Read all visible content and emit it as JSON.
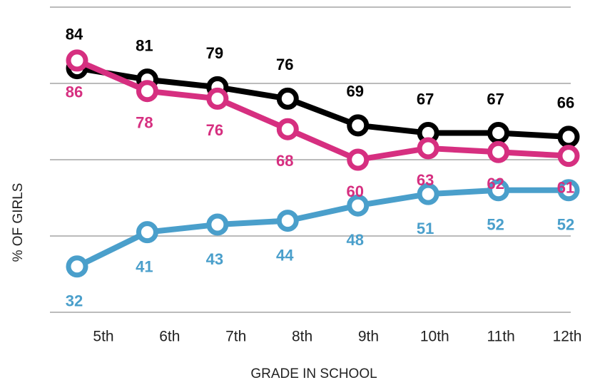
{
  "chart_data": {
    "type": "line",
    "x_label": "GRADE IN SCHOOL",
    "y_label": "% OF GIRLS",
    "categories": [
      "5th",
      "6th",
      "7th",
      "8th",
      "9th",
      "10th",
      "11th",
      "12th"
    ],
    "series": [
      {
        "color": "#000000",
        "values": [
          84,
          81,
          79,
          76,
          69,
          67,
          67,
          66
        ]
      },
      {
        "color": "#d62f80",
        "values": [
          86,
          78,
          76,
          68,
          60,
          63,
          62,
          61
        ]
      },
      {
        "color": "#4a9fcb",
        "values": [
          32,
          41,
          43,
          44,
          48,
          51,
          52,
          52
        ]
      }
    ],
    "ylim": [
      20,
      100
    ],
    "yticks": [
      20,
      40,
      60,
      80,
      100
    ],
    "grid": true
  }
}
